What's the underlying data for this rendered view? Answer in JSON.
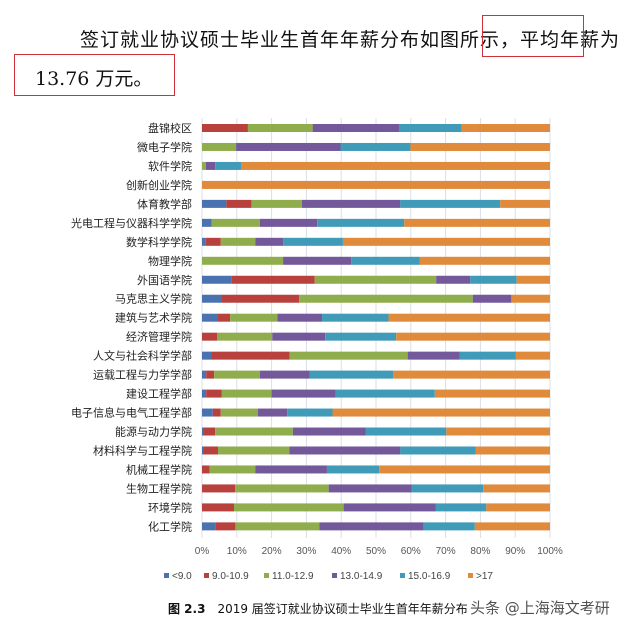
{
  "text": {
    "line1": "签订就业协议硕士毕业生首年年薪分布如图所示，",
    "line1_highlight": "平均年薪为",
    "line2_highlight": "13.76 万元。"
  },
  "caption": {
    "number": "图 2.3",
    "text": "2019 届签订就业协议硕士毕业生首年年薪分布"
  },
  "watermark": "头条 @上海海文考研",
  "chart_data": {
    "type": "bar",
    "orientation": "horizontal",
    "stacked": "percent",
    "xlim": [
      0,
      100
    ],
    "xticks": [
      "0%",
      "10%",
      "20%",
      "30%",
      "40%",
      "50%",
      "60%",
      "70%",
      "80%",
      "90%",
      "100%"
    ],
    "grid": true,
    "legend_position": "bottom",
    "categories": [
      "盘锦校区",
      "微电子学院",
      "软件学院",
      "创新创业学院",
      "体育教学部",
      "光电工程与仪器科学学院",
      "数学科学学院",
      "物理学院",
      "外国语学院",
      "马克思主义学院",
      "建筑与艺术学院",
      "经济管理学院",
      "人文与社会科学学部",
      "运载工程与力学学部",
      "建设工程学部",
      "电子信息与电气工程学部",
      "能源与动力学院",
      "材料科学与工程学院",
      "机械工程学院",
      "生物工程学院",
      "环境学院",
      "化工学院"
    ],
    "series": [
      {
        "name": "<9.0",
        "color": "#4a72b0",
        "values": [
          0,
          0,
          0,
          0,
          7.0,
          2.8,
          1.1,
          0,
          8.4,
          5.6,
          4.6,
          0,
          2.6,
          1.2,
          1.2,
          3.1,
          0.3,
          0.3,
          0,
          0,
          0,
          3.8
        ]
      },
      {
        "name": "9.0-10.9",
        "color": "#b8413e",
        "values": [
          13.2,
          0,
          0,
          0,
          7.2,
          0,
          4.3,
          0,
          24.0,
          22.3,
          3.5,
          4.4,
          22.6,
          2.3,
          4.5,
          2.3,
          3.5,
          4.3,
          2.2,
          9.5,
          9.2,
          5.8
        ]
      },
      {
        "name": "11.0-12.9",
        "color": "#8fad4d",
        "values": [
          18.6,
          9.8,
          1.1,
          0,
          14.5,
          13.8,
          9.9,
          23.3,
          34.9,
          49.9,
          13.6,
          15.8,
          33.9,
          13.1,
          14.3,
          10.7,
          22.3,
          20.5,
          13.1,
          26.9,
          31.5,
          24.1
        ]
      },
      {
        "name": "13.0-14.9",
        "color": "#73589a",
        "values": [
          24.8,
          30.0,
          2.7,
          0,
          28.3,
          16.5,
          8.0,
          19.6,
          9.8,
          11.1,
          12.8,
          15.2,
          15.0,
          14.4,
          18.4,
          8.4,
          21.0,
          31.9,
          20.6,
          23.9,
          26.4,
          30.0
        ]
      },
      {
        "name": "15.0-16.9",
        "color": "#3f9bb8",
        "values": [
          18.0,
          20.1,
          7.4,
          0,
          28.7,
          25.0,
          17.2,
          19.6,
          13.3,
          0,
          19.1,
          20.4,
          16.1,
          23.9,
          28.5,
          13.0,
          23.1,
          21.7,
          15.0,
          20.5,
          14.6,
          14.7
        ]
      },
      {
        "name": ">17",
        "color": "#e08a3c",
        "values": [
          25.4,
          40.1,
          88.8,
          100,
          14.3,
          41.9,
          59.5,
          37.5,
          9.6,
          11.1,
          46.4,
          44.2,
          9.8,
          45.1,
          33.1,
          62.5,
          29.8,
          21.3,
          49.1,
          19.2,
          18.3,
          21.6
        ]
      }
    ]
  }
}
